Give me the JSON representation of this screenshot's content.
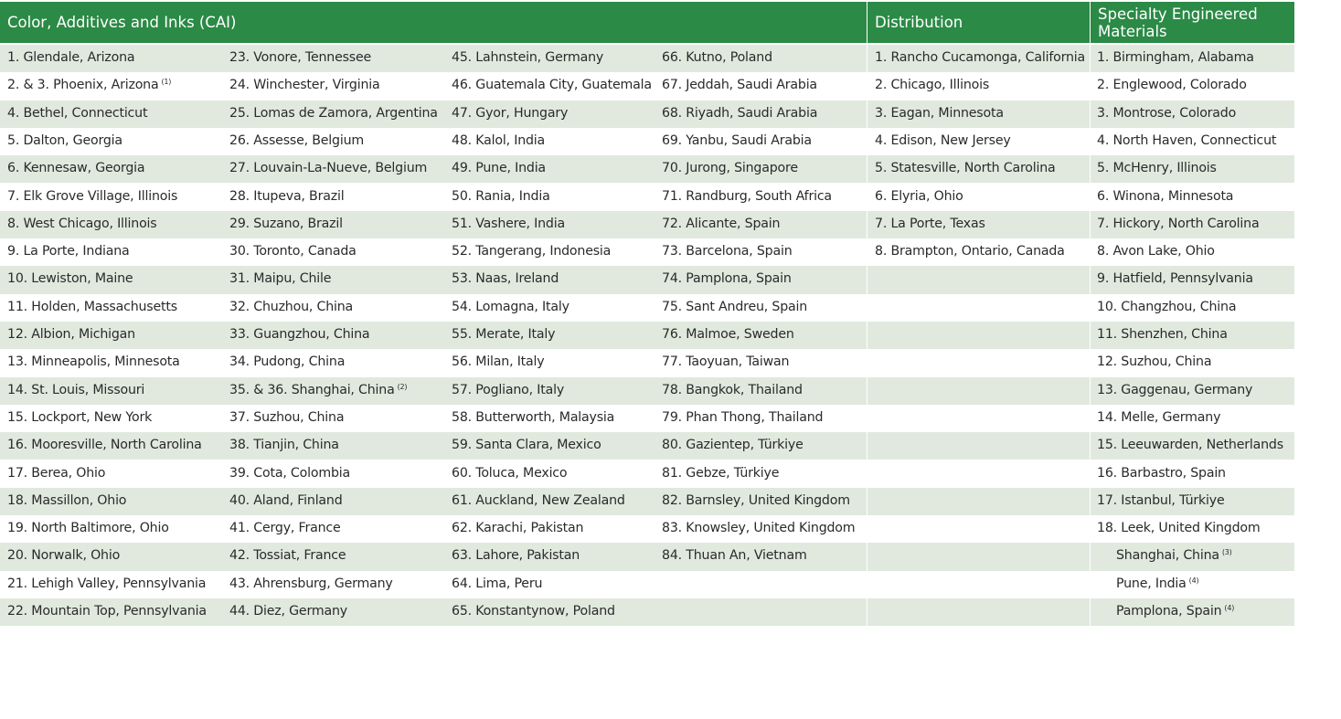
{
  "headers": [
    "Color, Additives and Inks (CAI)",
    "Distribution",
    "Specialty Engineered Materials"
  ],
  "columns": [
    [
      "1. Glendale, Arizona",
      {
        "text": "2. & 3. Phoenix, Arizona",
        "note": "(1)"
      },
      "4. Bethel, Connecticut",
      "5. Dalton, Georgia",
      "6. Kennesaw, Georgia",
      "7. Elk Grove Village, Illinois",
      "8. West Chicago, Illinois",
      "9. La Porte, Indiana",
      "10. Lewiston, Maine",
      "11. Holden, Massachusetts",
      "12. Albion, Michigan",
      "13. Minneapolis, Minnesota",
      "14. St. Louis, Missouri",
      "15. Lockport, New York",
      "16. Mooresville, North Carolina",
      "17. Berea, Ohio",
      "18. Massillon, Ohio",
      "19. North Baltimore, Ohio",
      "20. Norwalk, Ohio",
      "21. Lehigh Valley, Pennsylvania",
      "22. Mountain Top, Pennsylvania"
    ],
    [
      "23. Vonore, Tennessee",
      "24. Winchester, Virginia",
      "25. Lomas de Zamora, Argentina",
      "26. Assesse, Belgium",
      "27. Louvain-La-Nueve, Belgium",
      "28. Itupeva, Brazil",
      "29. Suzano, Brazil",
      "30. Toronto, Canada",
      "31. Maipu, Chile",
      "32. Chuzhou, China",
      "33. Guangzhou, China",
      "34. Pudong, China",
      {
        "text": "35. & 36. Shanghai, China",
        "note": "(2)"
      },
      "37. Suzhou, China",
      "38. Tianjin, China",
      "39. Cota, Colombia",
      "40. Aland, Finland",
      "41. Cergy, France",
      "42. Tossiat, France",
      "43. Ahrensburg, Germany",
      "44. Diez, Germany"
    ],
    [
      "45. Lahnstein, Germany",
      "46. Guatemala City, Guatemala",
      "47. Gyor, Hungary",
      "48. Kalol, India",
      "49. Pune, India",
      "50. Rania, India",
      "51. Vashere, India",
      "52. Tangerang, Indonesia",
      "53. Naas, Ireland",
      "54. Lomagna, Italy",
      "55. Merate, Italy",
      "56. Milan, Italy",
      "57. Pogliano, Italy",
      "58. Butterworth, Malaysia",
      "59. Santa Clara, Mexico",
      "60. Toluca, Mexico",
      "61. Auckland, New Zealand",
      "62. Karachi, Pakistan",
      "63. Lahore, Pakistan",
      "64. Lima, Peru",
      "65. Konstantynow, Poland"
    ],
    [
      "66. Kutno, Poland",
      "67. Jeddah, Saudi Arabia",
      "68. Riyadh, Saudi Arabia",
      "69. Yanbu, Saudi Arabia",
      "70. Jurong, Singapore",
      "71. Randburg, South Africa",
      "72. Alicante, Spain",
      "73. Barcelona, Spain",
      "74. Pamplona, Spain",
      "75. Sant Andreu, Spain",
      "76. Malmoe, Sweden",
      "77. Taoyuan, Taiwan",
      "78. Bangkok, Thailand",
      "79. Phan Thong, Thailand",
      "80. Gazientep, Türkiye",
      "81. Gebze, Türkiye",
      "82. Barnsley, United Kingdom",
      "83. Knowsley, United Kingdom",
      "84. Thuan An, Vietnam"
    ],
    [
      "1. Rancho Cucamonga, California",
      "2. Chicago, Illinois",
      "3. Eagan, Minnesota",
      "4. Edison, New Jersey",
      "5. Statesville, North Carolina",
      "6. Elyria, Ohio",
      "7. La Porte, Texas",
      "8. Brampton, Ontario, Canada"
    ],
    [
      "1. Birmingham, Alabama",
      "2. Englewood, Colorado",
      "3. Montrose, Colorado",
      "4. North Haven, Connecticut",
      "5. McHenry, Illinois",
      "6. Winona, Minnesota",
      "7. Hickory, North Carolina",
      "8. Avon Lake, Ohio",
      "9. Hatfield, Pennsylvania",
      "10. Changzhou, China",
      "11. Shenzhen, China",
      "12. Suzhou, China",
      "13. Gaggenau, Germany",
      "14. Melle, Germany",
      "15. Leeuwarden, Netherlands",
      "16. Barbastro, Spain",
      "17. Istanbul, Türkiye",
      "18. Leek, United Kingdom",
      {
        "text": "Shanghai, China",
        "note": "(3)"
      },
      {
        "text": "Pune, India",
        "note": "(4)"
      },
      {
        "text": "Pamplona, Spain",
        "note": "(4)"
      }
    ]
  ]
}
